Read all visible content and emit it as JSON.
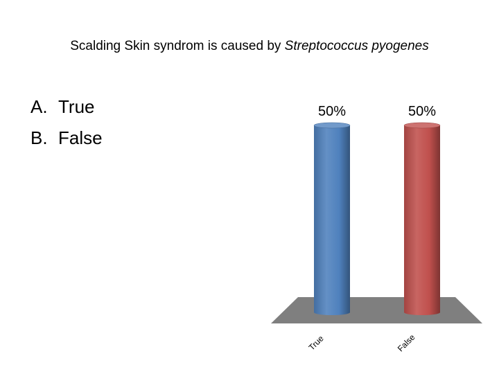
{
  "slide": {
    "question_prefix": "Scalding Skin syndrom is caused by ",
    "question_italic": "Streptococcus pyogenes",
    "options": [
      {
        "letter": "A.",
        "text": "True"
      },
      {
        "letter": "B.",
        "text": "False"
      }
    ]
  },
  "chart_data": {
    "type": "bar",
    "categories": [
      "True",
      "False"
    ],
    "values": [
      50,
      50
    ],
    "value_labels": [
      "50%",
      "50%"
    ],
    "colors": [
      "#4f81bd",
      "#c0504d"
    ],
    "floor_color": "#7f7f7f",
    "ylim": [
      0,
      50
    ],
    "grid": false,
    "legend": "none",
    "style": "3d-cylinder"
  }
}
